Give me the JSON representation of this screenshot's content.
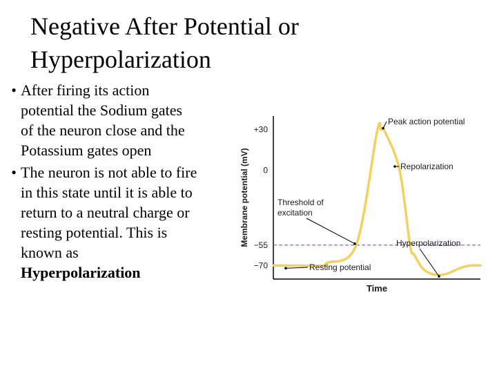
{
  "slide": {
    "title_line1": "Negative After Potential or",
    "title_line2": "Hyperpolarization",
    "bullets": [
      {
        "marker": "•",
        "lines": [
          "After firing its action",
          "potential the Sodium gates",
          "of the neuron close and the",
          "Potassium gates open"
        ]
      },
      {
        "marker": "•",
        "lines": [
          "The neuron is not able to fire",
          "in this state until it is able to",
          "return to a neutral charge or",
          "resting potential.  This is",
          "known as"
        ],
        "bold_line": "Hyperpolarization"
      }
    ]
  },
  "chart_data": {
    "type": "line",
    "xlabel": "Time",
    "ylabel": "Membrane potential (mV)",
    "yticks": [
      {
        "value": 30,
        "label": "+30"
      },
      {
        "value": 0,
        "label": "0"
      },
      {
        "value": -55,
        "label": "−55"
      },
      {
        "value": -70,
        "label": "−70"
      }
    ],
    "ylim": [
      -80,
      40
    ],
    "xlim": [
      0,
      100
    ],
    "threshold": -55,
    "series": [
      {
        "points": [
          [
            0,
            -70
          ],
          [
            24,
            -70
          ],
          [
            26,
            -68
          ],
          [
            40,
            -55
          ],
          [
            50,
            28
          ],
          [
            52,
            30
          ],
          [
            54,
            28
          ],
          [
            61,
            0
          ],
          [
            66,
            -55
          ],
          [
            68,
            -62
          ],
          [
            72,
            -72
          ],
          [
            76,
            -76
          ],
          [
            80,
            -77
          ],
          [
            84,
            -76
          ],
          [
            90,
            -72
          ],
          [
            95,
            -70
          ],
          [
            100,
            -70
          ]
        ]
      }
    ],
    "annotations": [
      "Peak action potential",
      "Repolarization",
      "Threshold of",
      "excitation",
      "Hyperpolarization",
      "Resting potential"
    ],
    "colors": {
      "line": "#f4d05c",
      "threshold": "#7b5fb0",
      "axis": "#000000",
      "text": "#1a1a1a"
    }
  }
}
